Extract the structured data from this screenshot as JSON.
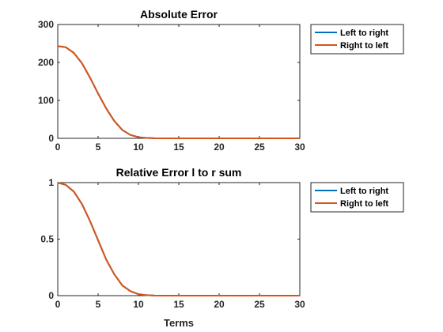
{
  "chart_data": [
    {
      "type": "line",
      "title": "Absolute Error",
      "xlabel": "",
      "ylabel": "",
      "xlim": [
        0,
        30
      ],
      "ylim": [
        0,
        300
      ],
      "xticks": [
        "0",
        "5",
        "10",
        "15",
        "20",
        "25",
        "30"
      ],
      "yticks": [
        "0",
        "100",
        "200",
        "300"
      ],
      "grid": false,
      "legend_position": "outside-top-right",
      "x": [
        0,
        1,
        2,
        3,
        4,
        5,
        6,
        7,
        8,
        9,
        10,
        11,
        12,
        13,
        14,
        15,
        16,
        17,
        18,
        19,
        20,
        21,
        22,
        23,
        24,
        25,
        26,
        27,
        28,
        29,
        30
      ],
      "series": [
        {
          "name": "Left to right",
          "color": "#0072BD",
          "values": [
            243,
            240,
            225,
            198,
            160,
            118,
            79,
            46,
            22,
            9,
            3,
            1,
            0.3,
            0.1,
            0,
            0,
            0,
            0,
            0,
            0,
            0,
            0,
            0,
            0,
            0,
            0,
            0,
            0,
            0,
            0,
            0
          ]
        },
        {
          "name": "Right to left",
          "color": "#D95319",
          "values": [
            243,
            240,
            225,
            198,
            160,
            118,
            79,
            46,
            22,
            9,
            3,
            1,
            0.3,
            0.1,
            0,
            0,
            0,
            0,
            0,
            0,
            0,
            0,
            0,
            0,
            0,
            0,
            0,
            0,
            0,
            0,
            0
          ]
        }
      ]
    },
    {
      "type": "line",
      "title": "Relative Error l to r sum",
      "xlabel": "Terms",
      "ylabel": "",
      "xlim": [
        0,
        30
      ],
      "ylim": [
        0,
        1
      ],
      "xticks": [
        "0",
        "5",
        "10",
        "15",
        "20",
        "25",
        "30"
      ],
      "yticks": [
        "0",
        "0.5",
        "1"
      ],
      "grid": false,
      "legend_position": "outside-top-right",
      "x": [
        0,
        1,
        2,
        3,
        4,
        5,
        6,
        7,
        8,
        9,
        10,
        11,
        12,
        13,
        14,
        15,
        16,
        17,
        18,
        19,
        20,
        21,
        22,
        23,
        24,
        25,
        26,
        27,
        28,
        29,
        30
      ],
      "series": [
        {
          "name": "Left to right",
          "color": "#0072BD",
          "values": [
            1,
            0.98,
            0.92,
            0.81,
            0.66,
            0.49,
            0.32,
            0.19,
            0.09,
            0.04,
            0.013,
            0.004,
            0.001,
            0,
            0,
            0,
            0,
            0,
            0,
            0,
            0,
            0,
            0,
            0,
            0,
            0,
            0,
            0,
            0,
            0,
            0
          ]
        },
        {
          "name": "Right to left",
          "color": "#D95319",
          "values": [
            1,
            0.98,
            0.92,
            0.81,
            0.66,
            0.49,
            0.32,
            0.19,
            0.09,
            0.04,
            0.013,
            0.004,
            0.001,
            0,
            0,
            0,
            0,
            0,
            0,
            0,
            0,
            0,
            0,
            0,
            0,
            0,
            0,
            0,
            0,
            0,
            0
          ]
        }
      ]
    }
  ]
}
